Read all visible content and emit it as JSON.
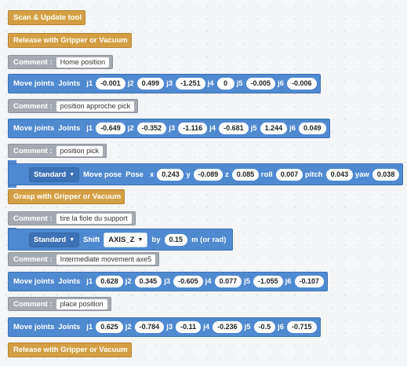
{
  "blocks": {
    "scan_update": "Scan & Update tool",
    "release1": "Release with Gripper or Vacuum",
    "comment1": {
      "label": "Comment :",
      "text": "Home position"
    },
    "move1": {
      "label": "Move joints",
      "sub": "Joints",
      "j": [
        "j1",
        "j2",
        "j3",
        "j4",
        "j5",
        "j6"
      ],
      "values": [
        "-0.001",
        "0.499",
        "-1.251",
        "0",
        "-0.005",
        "-0.006"
      ]
    },
    "comment2": {
      "label": "Comment :",
      "text": "position approche pick"
    },
    "move2": {
      "label": "Move joints",
      "sub": "Joints",
      "j": [
        "j1",
        "j2",
        "j3",
        "j4",
        "j5",
        "j6"
      ],
      "values": [
        "-0.649",
        "-0.352",
        "-1.116",
        "-0.681",
        "1.244",
        "0.049"
      ]
    },
    "comment3": {
      "label": "Comment :",
      "text": "position pick"
    },
    "movepose": {
      "mode": "Standard",
      "label": "Move pose",
      "sub": "Pose",
      "keys": [
        "x",
        "y",
        "z",
        "roll",
        "pitch",
        "yaw"
      ],
      "values": [
        "0.243",
        "-0.089",
        "0.085",
        "0.007",
        "0.043",
        "0.038"
      ]
    },
    "grasp": "Grasp with Gripper or Vacuum",
    "comment4": {
      "label": "Comment :",
      "text": "tire la fiole du support"
    },
    "shift": {
      "mode": "Standard",
      "label": "Shift",
      "axis": "AXIS_Z",
      "by": "by",
      "value": "0.15",
      "unit": "m (or rad)"
    },
    "comment5": {
      "label": "Comment :",
      "text": "Intermediate movement axe5"
    },
    "move3": {
      "label": "Move joints",
      "sub": "Joints",
      "j": [
        "j1",
        "j2",
        "j3",
        "j4",
        "j5",
        "j6"
      ],
      "values": [
        "0.628",
        "0.345",
        "-0.605",
        "0.077",
        "-1.055",
        "-0.107"
      ]
    },
    "comment6": {
      "label": "Comment :",
      "text": "place position"
    },
    "move4": {
      "label": "Move joints",
      "sub": "Joints",
      "j": [
        "j1",
        "j2",
        "j3",
        "j4",
        "j5",
        "j6"
      ],
      "values": [
        "0.625",
        "-0.784",
        "-0.11",
        "-0.236",
        "-0.5",
        "-0.715"
      ]
    },
    "release2": "Release with Gripper or Vacuum"
  },
  "colors": {
    "tool": "#d49f44",
    "comment": "#a6aab2",
    "motion": "#4f8ad1"
  }
}
